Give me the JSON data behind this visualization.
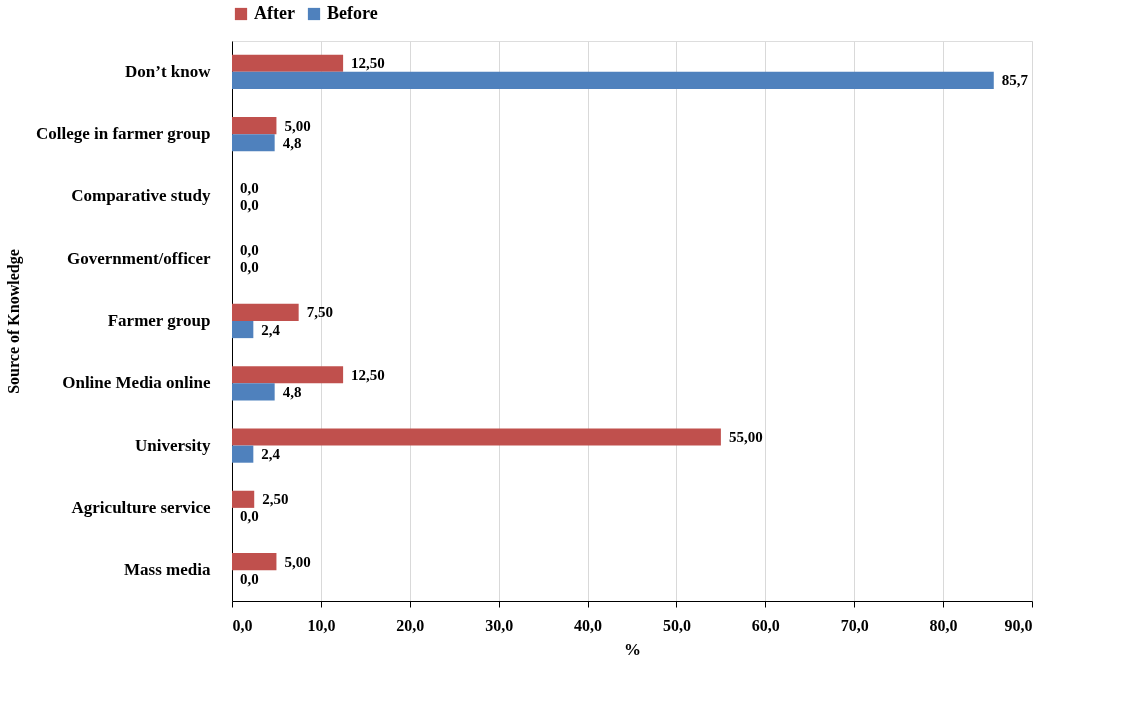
{
  "chart_data": {
    "type": "bar",
    "orientation": "horizontal",
    "ylabel": "Source of Knowledge",
    "xlabel": "%",
    "categories": [
      "Don’t know",
      "College in farmer group",
      "Comparative study",
      "Government/officer",
      "Farmer group",
      "Online Media online",
      "University",
      "Agriculture service",
      "Mass media"
    ],
    "series": [
      {
        "name": "After",
        "color": "#c0504d",
        "values": [
          12.5,
          5,
          0,
          0,
          7.5,
          12.5,
          55,
          2.5,
          5
        ],
        "value_labels": [
          "12,50",
          "5,00",
          "0,0",
          "0,0",
          "7,50",
          "12,50",
          "55,00",
          "2,50",
          "5,00"
        ]
      },
      {
        "name": "Before",
        "color": "#4f81bd",
        "values": [
          85.7,
          4.8,
          0,
          0,
          2.4,
          4.8,
          2.4,
          0,
          0
        ],
        "value_labels": [
          "85,7",
          "4,8",
          "0,0",
          "0,0",
          "2,4",
          "4,8",
          "2,4",
          "0,0",
          "0,0"
        ]
      }
    ],
    "xlim": [
      0,
      90
    ],
    "xticks": [
      {
        "value": 0,
        "label": "0,0"
      },
      {
        "value": 10,
        "label": "10,0"
      },
      {
        "value": 20,
        "label": "20,0"
      },
      {
        "value": 30,
        "label": "30,0"
      },
      {
        "value": 40,
        "label": "40,0"
      },
      {
        "value": 50,
        "label": "50,0"
      },
      {
        "value": 60,
        "label": "60,0"
      },
      {
        "value": 70,
        "label": "70,0"
      },
      {
        "value": 80,
        "label": "80,0"
      },
      {
        "value": 90,
        "label": "90,0"
      }
    ],
    "grid": "x",
    "legend": "top"
  }
}
